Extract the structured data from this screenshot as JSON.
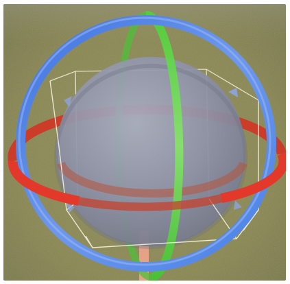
{
  "scene": {
    "ground_color": "#8e8a58",
    "sphere_color": "#8e93a8",
    "bounding_box_color": "#f4f1df",
    "gizmo": {
      "mode": "rotate",
      "x_axis_color": "#e3392b",
      "y_axis_color": "#61d53f",
      "z_axis_color": "#4a82e6",
      "handle_color": "#f0a48c"
    }
  }
}
